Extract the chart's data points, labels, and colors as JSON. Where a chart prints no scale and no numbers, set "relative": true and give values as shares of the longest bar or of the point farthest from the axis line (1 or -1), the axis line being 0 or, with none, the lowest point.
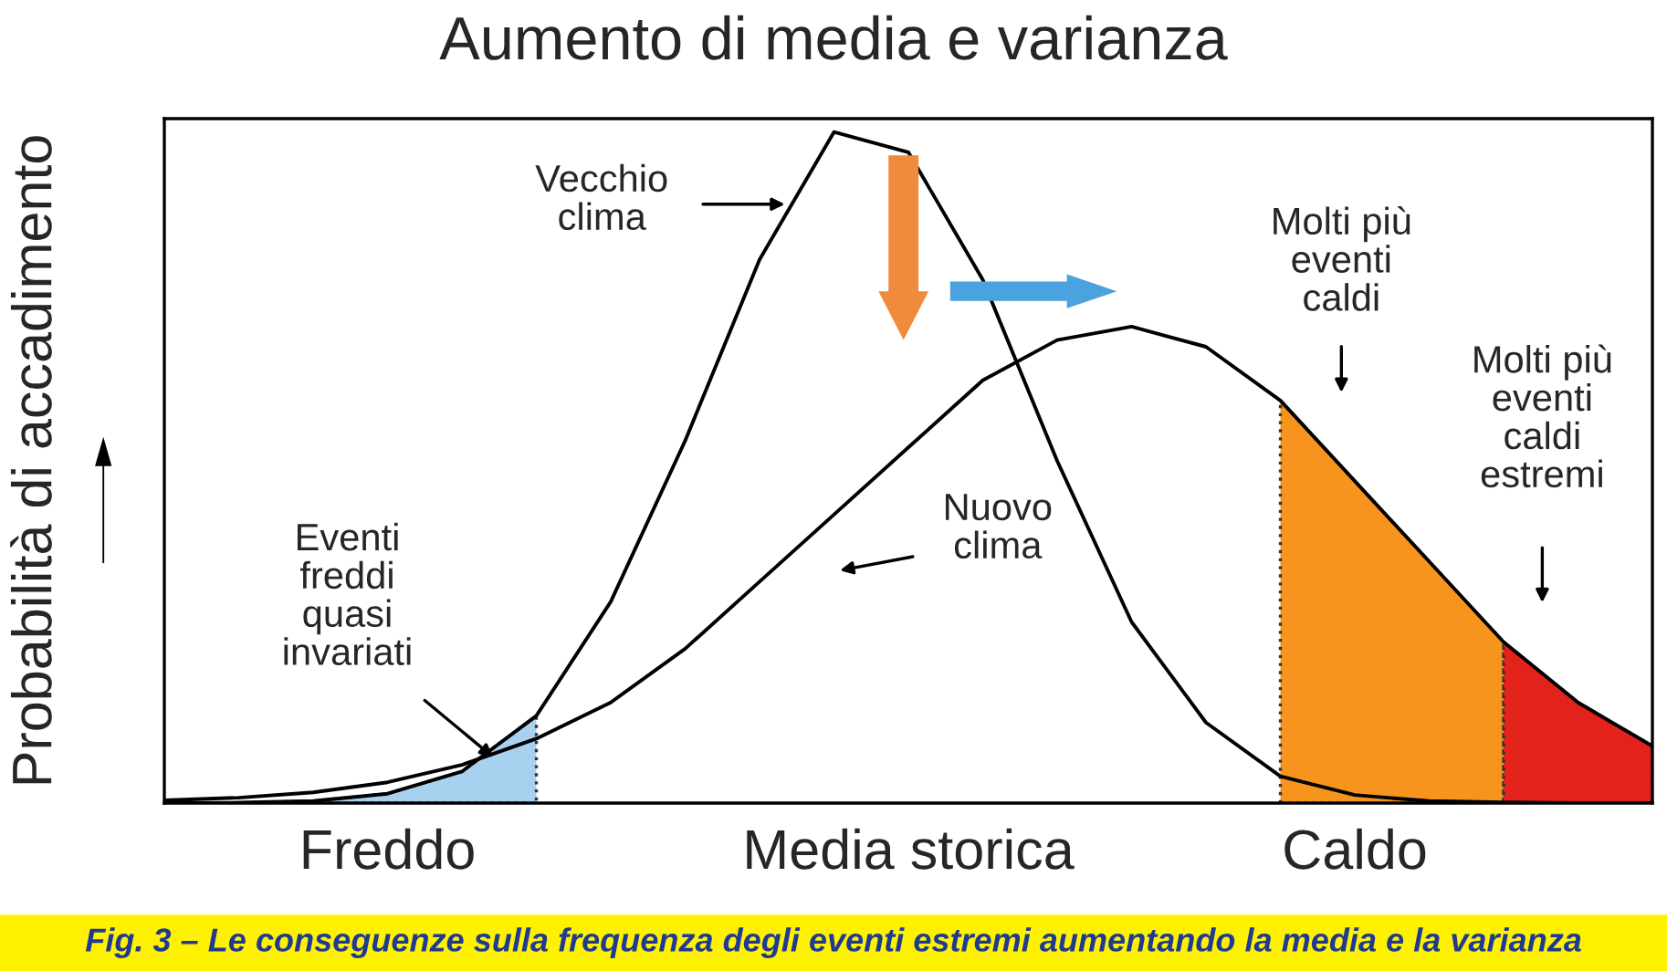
{
  "chart_data": {
    "type": "line",
    "relative": true,
    "title": "Aumento di media e varianza",
    "ylabel": "Probabilità di accadimento",
    "categories": [
      null,
      null,
      null,
      "Freddo",
      null,
      null,
      null,
      null,
      null,
      null,
      "Media storica",
      null,
      null,
      null,
      null,
      null,
      "Caldo",
      null,
      null,
      null,
      null
    ],
    "series": [
      {
        "type": "area",
        "color": "#a8d1f0",
        "values": [
          0.0,
          0.0006,
          0.003,
          0.014,
          0.047,
          0.13,
          null,
          null,
          null,
          null,
          null,
          null,
          null,
          null,
          null,
          null,
          null,
          null,
          null,
          null,
          null
        ]
      },
      {
        "type": "area",
        "color": "#f7941d",
        "values": [
          null,
          null,
          null,
          null,
          null,
          null,
          null,
          null,
          null,
          null,
          null,
          null,
          null,
          null,
          null,
          0.6,
          0.48,
          0.36,
          0.24,
          null,
          null
        ]
      },
      {
        "type": "area",
        "color": "#e3231b",
        "values": [
          null,
          null,
          null,
          null,
          null,
          null,
          null,
          null,
          null,
          null,
          null,
          null,
          null,
          null,
          null,
          null,
          null,
          null,
          0.24,
          0.15,
          0.085
        ]
      },
      {
        "color": "#000000",
        "values": [
          0.0,
          0.0006,
          0.003,
          0.014,
          0.047,
          0.13,
          0.3,
          0.54,
          0.81,
          1,
          0.97,
          0.78,
          0.51,
          0.27,
          0.12,
          0.04,
          0.012,
          0.003,
          0.001,
          0.0,
          0.0
        ]
      },
      {
        "color": "#000000",
        "values": [
          0.004,
          0.008,
          0.016,
          0.031,
          0.057,
          0.096,
          0.15,
          0.23,
          0.33,
          0.43,
          0.53,
          0.63,
          0.69,
          0.71,
          0.68,
          0.6,
          0.48,
          0.36,
          0.24,
          0.15,
          0.085
        ]
      }
    ],
    "annotations": [
      "Vecchio\nclima",
      "Nuovo\nclima",
      "Eventi\nfreddi\nquasi\ninvariati",
      "Molti più\neventi\ncaldi",
      "Molti più\neventi\ncaldi\nestremi",
      "Fig. 3 – Le conseguenze sulla frequenza degli eventi estremi aumentando la media e la varianza"
    ],
    "grid": false,
    "legend": false
  }
}
